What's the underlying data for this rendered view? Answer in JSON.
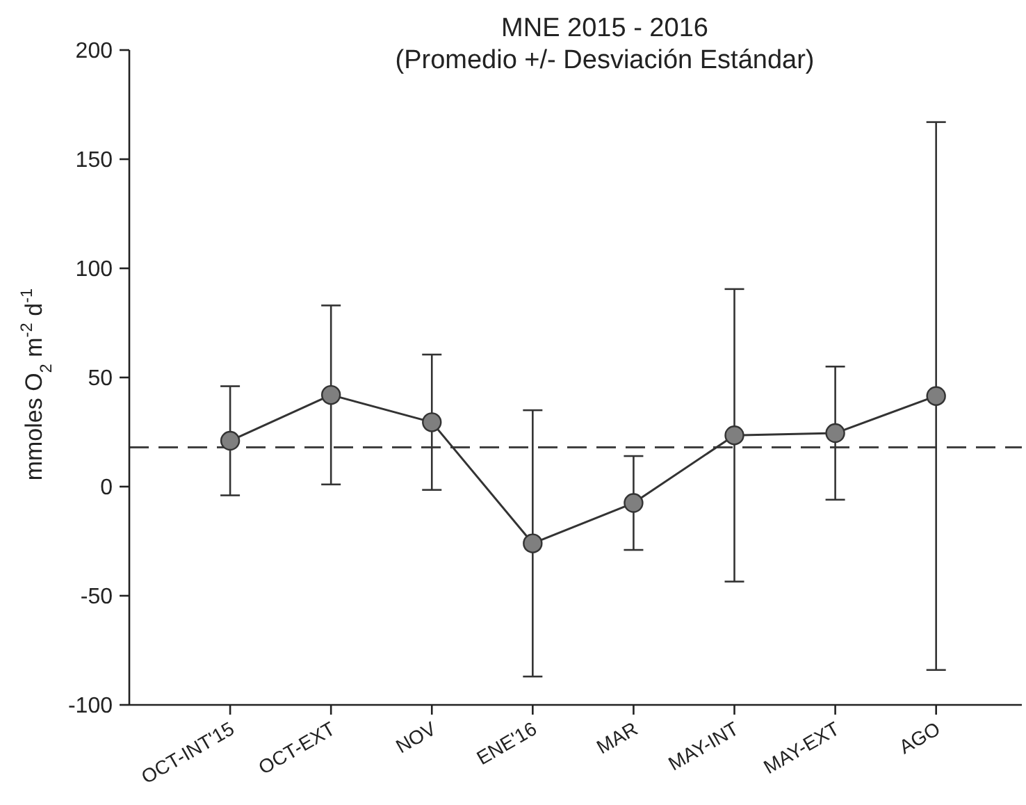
{
  "chart_data": {
    "type": "line",
    "title": "MNE 2015 - 2016",
    "subtitle": "(Promedio +/- Desviación Estándar)",
    "ylabel": "mmoles O$_{2}$ m$^{-2}$ d$^{-1}$",
    "categories": [
      "OCT-INT'15",
      "OCT-EXT",
      "NOV",
      "ENE'16",
      "MAR",
      "MAY-INT",
      "MAY-EXT",
      "AGO"
    ],
    "series": [
      {
        "color": "#7f7f7f",
        "values": [
          21,
          42,
          29.5,
          -26,
          -7.5,
          23.5,
          24.5,
          41.5
        ],
        "errors": [
          25,
          41,
          31,
          61,
          21.5,
          67,
          30.5,
          125.5
        ]
      }
    ],
    "ylim": [
      -100,
      200
    ],
    "yticks": [
      -100,
      -50,
      0,
      50,
      100,
      150,
      200
    ],
    "ref_lines": [
      {
        "axis": "y",
        "value": 18,
        "line_style": "dashed",
        "color": "#404040"
      }
    ],
    "marker": "circle",
    "line_style": "solid",
    "grid": false
  }
}
